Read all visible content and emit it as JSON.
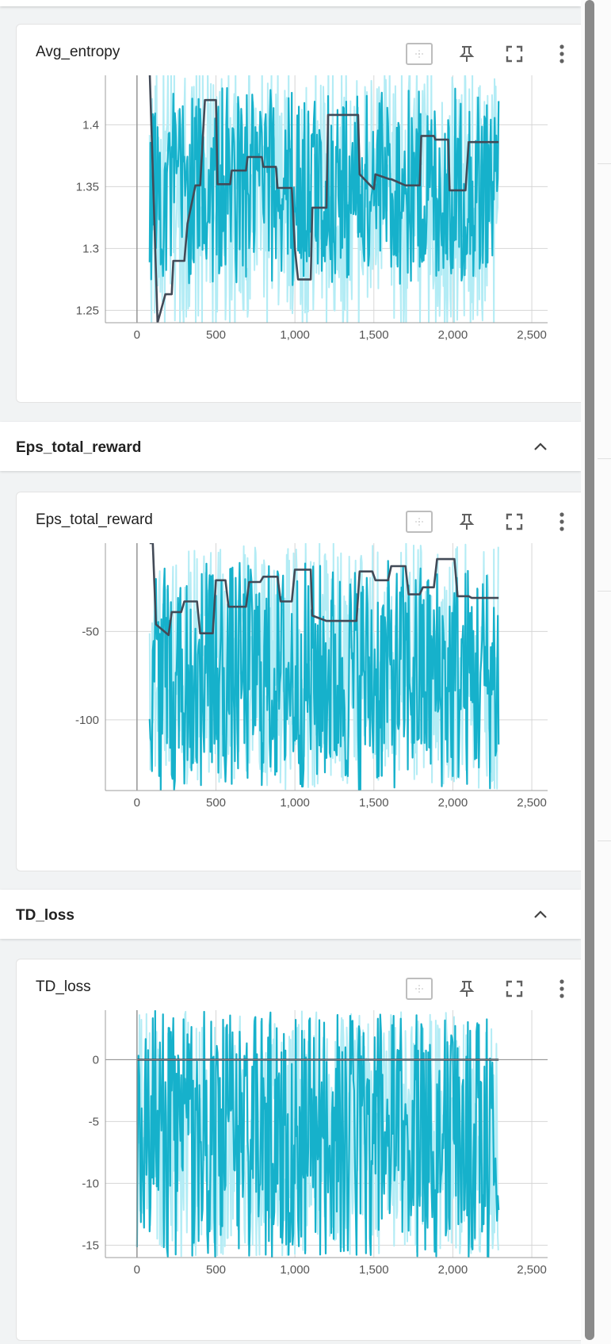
{
  "sections": [
    {
      "title": "Eps_total_reward"
    },
    {
      "title": "TD_loss"
    }
  ],
  "colors": {
    "raw": "#b3ecf5",
    "smoothed": "#16b1cb",
    "trend": "#424a57",
    "grid": "#d6d6d6",
    "axis": "#8f8f8f"
  },
  "icons": {
    "fit_domain": "fit-domain-icon",
    "pin": "pin-icon",
    "fullscreen": "fullscreen-icon",
    "more": "more-vert-icon",
    "collapse": "chevron-up-icon"
  },
  "chart_data": [
    {
      "type": "line",
      "title": "Avg_entropy",
      "xlabel": "",
      "ylabel": "",
      "xlim": [
        -200,
        2600
      ],
      "ylim": [
        1.24,
        1.44
      ],
      "x_ticks": [
        0,
        500,
        1000,
        1500,
        2000,
        2500
      ],
      "x_tick_labels": [
        "0",
        "500",
        "1,000",
        "1,500",
        "2,000",
        "2,500"
      ],
      "y_ticks": [
        1.25,
        1.3,
        1.35,
        1.4
      ],
      "y_tick_labels": [
        "1.25",
        "1.3",
        "1.35",
        "1.4"
      ],
      "data_x_range": [
        80,
        2290
      ],
      "grid": true,
      "legend": "none",
      "raw_band": {
        "low": 1.23,
        "high": 1.45
      },
      "smoothed_band": {
        "low": 1.27,
        "high": 1.43
      },
      "trend_line": {
        "x": [
          80,
          130,
          180,
          220,
          230,
          300,
          320,
          370,
          400,
          430,
          450,
          500,
          510,
          590,
          600,
          690,
          700,
          790,
          800,
          880,
          890,
          980,
          1000,
          1020,
          1060,
          1100,
          1110,
          1200,
          1210,
          1400,
          1410,
          1500,
          1510,
          1600,
          1610,
          1700,
          1710,
          1790,
          1800,
          1880,
          1890,
          1970,
          1980,
          2080,
          2100,
          2290
        ],
        "y": [
          1.445,
          1.24,
          1.263,
          1.263,
          1.29,
          1.29,
          1.32,
          1.351,
          1.351,
          1.42,
          1.42,
          1.42,
          1.352,
          1.352,
          1.363,
          1.363,
          1.374,
          1.374,
          1.366,
          1.366,
          1.349,
          1.349,
          1.3,
          1.275,
          1.275,
          1.275,
          1.333,
          1.333,
          1.408,
          1.408,
          1.36,
          1.348,
          1.36,
          1.356,
          1.356,
          1.351,
          1.351,
          1.351,
          1.391,
          1.391,
          1.388,
          1.388,
          1.347,
          1.347,
          1.386,
          1.386
        ]
      }
    },
    {
      "type": "line",
      "title": "Eps_total_reward",
      "xlabel": "",
      "ylabel": "",
      "xlim": [
        -200,
        2600
      ],
      "ylim": [
        -140,
        0
      ],
      "x_ticks": [
        0,
        500,
        1000,
        1500,
        2000,
        2500
      ],
      "x_tick_labels": [
        "0",
        "500",
        "1,000",
        "1,500",
        "2,000",
        "2,500"
      ],
      "y_ticks": [
        -100,
        -50
      ],
      "y_tick_labels": [
        "-100",
        "-50"
      ],
      "data_x_range": [
        80,
        2290
      ],
      "grid": true,
      "legend": "none",
      "raw_band": {
        "low": -140,
        "high": 0
      },
      "smoothed_band": {
        "low": -140,
        "high": -10
      },
      "trend_line": {
        "x": [
          80,
          100,
          120,
          200,
          220,
          280,
          300,
          380,
          400,
          480,
          500,
          560,
          580,
          690,
          710,
          780,
          800,
          890,
          910,
          980,
          1000,
          1100,
          1110,
          1200,
          1210,
          1390,
          1410,
          1490,
          1510,
          1590,
          1610,
          1700,
          1720,
          1790,
          1810,
          1880,
          1900,
          2010,
          2030,
          2100,
          2120,
          2290
        ],
        "y": [
          0,
          0,
          -46,
          -52,
          -39,
          -39,
          -33,
          -33,
          -51,
          -51,
          -21,
          -21,
          -36,
          -36,
          -22,
          -22,
          -19,
          -19,
          -33,
          -33,
          -15,
          -15,
          -41,
          -44,
          -44,
          -44,
          -16,
          -16,
          -21,
          -21,
          -13,
          -13,
          -29,
          -29,
          -25,
          -25,
          -9,
          -9,
          -30,
          -30,
          -31,
          -31
        ]
      }
    },
    {
      "type": "line",
      "title": "TD_loss",
      "xlabel": "",
      "ylabel": "",
      "xlim": [
        -200,
        2600
      ],
      "ylim": [
        -16,
        4
      ],
      "x_ticks": [
        0,
        500,
        1000,
        1500,
        2000,
        2500
      ],
      "x_tick_labels": [
        "0",
        "500",
        "1,000",
        "1,500",
        "2,000",
        "2,500"
      ],
      "y_ticks": [
        -15,
        -10,
        -5,
        0
      ],
      "y_tick_labels": [
        "-15",
        "-10",
        "-5",
        "0"
      ],
      "data_x_range": [
        0,
        2290
      ],
      "grid": true,
      "legend": "none",
      "raw_band": {
        "low": -16,
        "high": 4
      },
      "smoothed_band": {
        "low": -16,
        "high": 4
      },
      "trend_line": {
        "x": [
          0,
          2290
        ],
        "y": [
          0,
          0
        ]
      }
    }
  ]
}
